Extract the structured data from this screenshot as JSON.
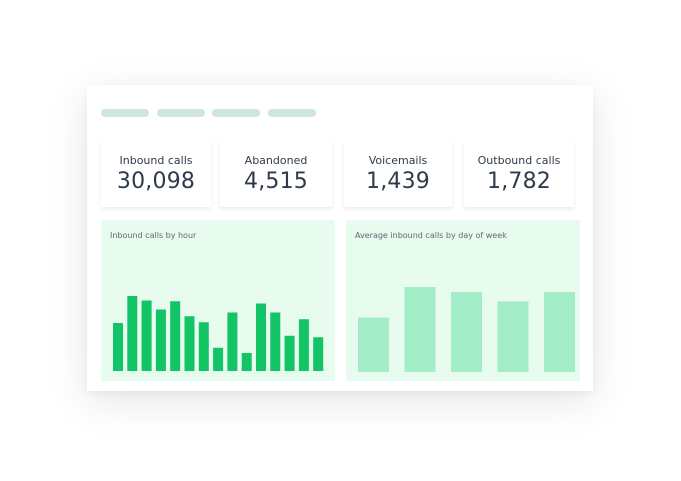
{
  "stats": [
    {
      "label": "Inbound calls",
      "value": "30,098"
    },
    {
      "label": "Abandoned",
      "value": "4,515"
    },
    {
      "label": "Voicemails",
      "value": "1,439"
    },
    {
      "label": "Outbound calls",
      "value": "1,782"
    }
  ],
  "colors": {
    "pill": "#cfe6dc",
    "panel_bg": "#e7fbef",
    "hour_bar": "#12c466",
    "day_bar": "#a3ecc8",
    "text": "#2f3a4a"
  },
  "chart_data": [
    {
      "type": "bar",
      "title": "Inbound calls by hour",
      "values": [
        0.64,
        1.0,
        0.94,
        0.82,
        0.93,
        0.73,
        0.65,
        0.31,
        0.78,
        0.24,
        0.9,
        0.78,
        0.47,
        0.69,
        0.45
      ],
      "ylim": [
        0,
        1
      ],
      "grid": false
    },
    {
      "type": "bar",
      "title": "Average inbound calls by day of week",
      "values": [
        0.64,
        1.0,
        0.94,
        0.83,
        0.94
      ],
      "ylim": [
        0,
        1
      ],
      "grid": false
    }
  ]
}
